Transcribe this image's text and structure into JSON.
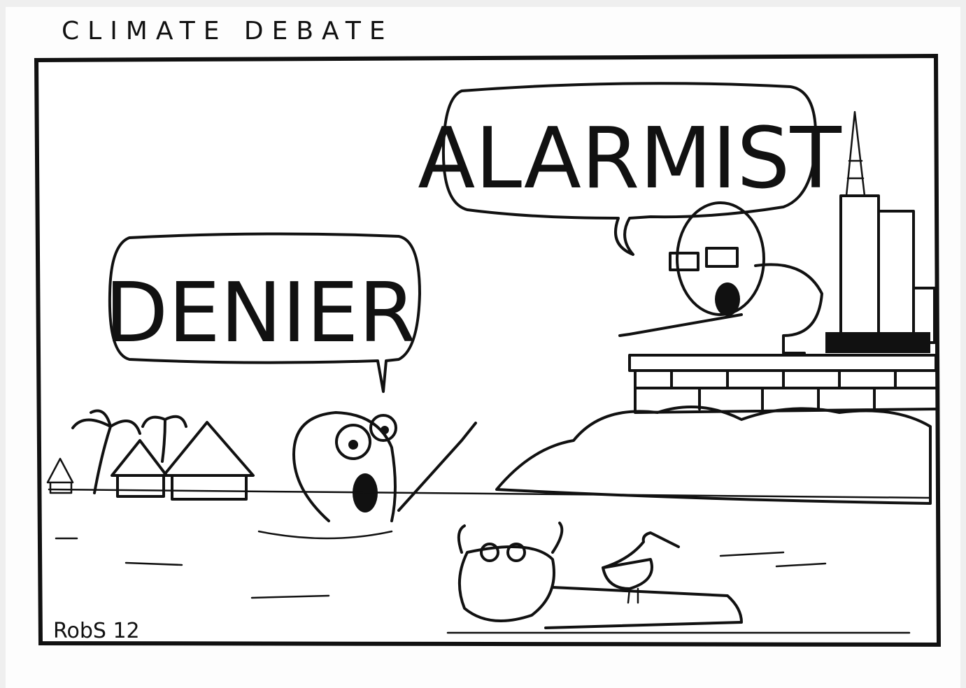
{
  "header": {
    "title": "CLIMATE DEBATE"
  },
  "bubbles": [
    {
      "label": "DENIER"
    },
    {
      "label": "ALARMIST"
    }
  ],
  "signature": "RobS 12"
}
